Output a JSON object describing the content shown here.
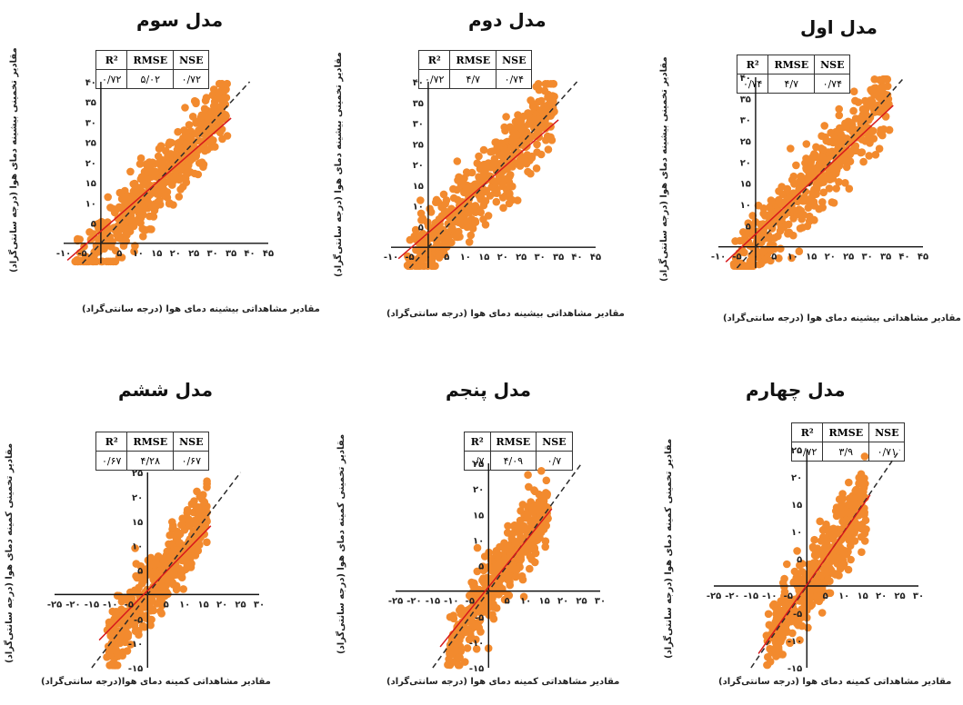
{
  "colors": {
    "points": "#f28a2e",
    "fit_line": "#d7191c",
    "one_to_one": "#2b2b2b"
  },
  "stats_headers": {
    "r2": "R²",
    "rmse": "RMSE",
    "nse": "NSE"
  },
  "chart_data": [
    {
      "type": "scatter",
      "title": "مدل سوم",
      "xlabel": "مقادیر مشاهداتی بیشینه دمای هوا (درجه سانتی‌گراد)",
      "ylabel": "مقادیر تخمینی بیشینه دمای هوا (درجه سانتی‌گراد)",
      "xlim": [
        -10,
        45
      ],
      "ylim": [
        -5,
        40
      ],
      "xticks": [
        "-۱۰",
        "-۵",
        "۰",
        "۵",
        "۱۰",
        "۱۵",
        "۲۰",
        "۲۵",
        "۳۰",
        "۳۵",
        "۴۰",
        "۴۵"
      ],
      "yticks": [
        "۵",
        "۱۰",
        "۱۵",
        "۲۰",
        "۲۵",
        "۳۰",
        "۳۵",
        "۴۰"
      ],
      "stats": {
        "r2": "۰/۷۲",
        "rmse": "۵/۰۲",
        "nse": "۰/۷۲"
      },
      "fit": {
        "slope": 0.8,
        "intercept": 3.0
      },
      "scatter": {
        "n": 520,
        "xmin": -7,
        "xmax": 34,
        "spread": 4.5
      }
    },
    {
      "type": "scatter",
      "title": "مدل دوم",
      "xlabel": "مقادیر مشاهداتی بیشینه دمای هوا (درجه سانتی‌گراد)",
      "ylabel": "مقادیر تخمینی بیشینه دمای هوا (درجه سانتی‌گراد)",
      "xlim": [
        -10,
        45
      ],
      "ylim": [
        -5,
        40
      ],
      "xticks": [
        "-۱۰",
        "-۵",
        "۰",
        "۵",
        "۱۰",
        "۱۵",
        "۲۰",
        "۲۵",
        "۳۰",
        "۳۵",
        "۴۰",
        "۴۵"
      ],
      "yticks": [
        "۵",
        "۱۰",
        "۱۵",
        "۲۰",
        "۲۵",
        "۳۰",
        "۳۵",
        "۴۰"
      ],
      "stats": {
        "r2": "۰/۷۲",
        "rmse": "۴/۷",
        "nse": "۰/۷۴"
      },
      "fit": {
        "slope": 0.78,
        "intercept": 3.5
      },
      "scatter": {
        "n": 520,
        "xmin": -6,
        "xmax": 34,
        "spread": 4.2
      }
    },
    {
      "type": "scatter",
      "title": "مدل اول",
      "xlabel": "مقادیر مشاهداتی بیشینه دمای هوا (درجه سانتی‌گراد)",
      "ylabel": "مقادیر تخمینی بیشینه دمای هوا (درجه سانتی‌گراد)",
      "xlim": [
        -10,
        45
      ],
      "ylim": [
        -5,
        40
      ],
      "xticks": [
        "-۱۰",
        "-۵",
        "۰",
        "۵",
        "۱۰",
        "۱۵",
        "۲۰",
        "۲۵",
        "۳۰",
        "۳۵",
        "۴۰",
        "۴۵"
      ],
      "yticks": [
        "۵",
        "۱۰",
        "۱۵",
        "۲۰",
        "۲۵",
        "۳۰",
        "۳۵",
        "۴۰"
      ],
      "stats": {
        "r2": "۰/۷۴",
        "rmse": "۴/۷",
        "nse": "۰/۷۴"
      },
      "fit": {
        "slope": 0.82,
        "intercept": 3.0
      },
      "scatter": {
        "n": 520,
        "xmin": -6,
        "xmax": 36,
        "spread": 4.3
      }
    },
    {
      "type": "scatter",
      "title": "مدل ششم",
      "xlabel": "مقادیر مشاهداتی کمینه دمای هوا(درجه سانتی‌گراد)",
      "ylabel": "مقادیر تخمینی کمینه دمای هوا (درجه سانتی‌گراد)",
      "xlim": [
        -25,
        30
      ],
      "ylim": [
        -15,
        25
      ],
      "xticks": [
        "-۲۵",
        "-۲۰",
        "-۱۵",
        "-۱۰",
        "-۵",
        "۵",
        "۱۰",
        "۱۵",
        "۲۰",
        "۲۵",
        "۳۰"
      ],
      "yticks": [
        "-۱۵",
        "-۱۰",
        "-۵",
        "۵",
        "۱۰",
        "۱۵",
        "۲۰",
        "۲۵"
      ],
      "stats": {
        "r2": "۰/۶۷",
        "rmse": "۴/۲۸",
        "nse": "۰/۶۷"
      },
      "fit": {
        "slope": 0.78,
        "intercept": 0.8
      },
      "scatter": {
        "n": 460,
        "xmin": -11,
        "xmax": 16,
        "spread": 3.6
      }
    },
    {
      "type": "scatter",
      "title": "مدل پنجم",
      "xlabel": "مقادیر مشاهداتی کمینه دمای هوا (درجه سانتی‌گراد)",
      "ylabel": "مقادیر تخمینی کمینه دمای هوا (درجه سانتی‌گراد)",
      "xlim": [
        -25,
        30
      ],
      "ylim": [
        -15,
        25
      ],
      "xticks": [
        "-۲۵",
        "-۲۰",
        "-۱۵",
        "-۱۰",
        "-۵",
        "۵",
        "۱۰",
        "۱۵",
        "۲۰",
        "۲۵",
        "۳۰"
      ],
      "yticks": [
        "-۱۵",
        "-۱۰",
        "-۵",
        "۵",
        "۱۰",
        "۱۵",
        "۲۰",
        "۲۵"
      ],
      "stats": {
        "r2": "۰/۷",
        "rmse": "۴/۰۹",
        "nse": "۰/۷"
      },
      "fit": {
        "slope": 0.9,
        "intercept": 0.8
      },
      "scatter": {
        "n": 460,
        "xmin": -11,
        "xmax": 16,
        "spread": 3.4
      }
    },
    {
      "type": "scatter",
      "title": "مدل چهارم",
      "xlabel": "مقادیر مشاهداتی کمینه دمای هوا (درجه سانتی‌گراد)",
      "ylabel": "مقادیر تخمینی کمینه دمای هوا (درجه سانتی‌گراد)",
      "xlim": [
        -25,
        30
      ],
      "ylim": [
        -15,
        25
      ],
      "xticks": [
        "-۲۵",
        "-۲۰",
        "-۱۵",
        "-۱۰",
        "-۵",
        "۵",
        "۱۰",
        "۱۵",
        "۲۰",
        "۲۵",
        "۳۰"
      ],
      "yticks": [
        "-۱۵",
        "-۱۰",
        "-۵",
        "۵",
        "۱۰",
        "۱۵",
        "۲۰",
        "۲۵"
      ],
      "stats": {
        "r2": "۰/۷۲",
        "rmse": "۳/۹",
        "nse": "۰/۷۱"
      },
      "fit": {
        "slope": 0.97,
        "intercept": 0.2
      },
      "scatter": {
        "n": 460,
        "xmin": -11,
        "xmax": 16,
        "spread": 3.3
      }
    }
  ]
}
